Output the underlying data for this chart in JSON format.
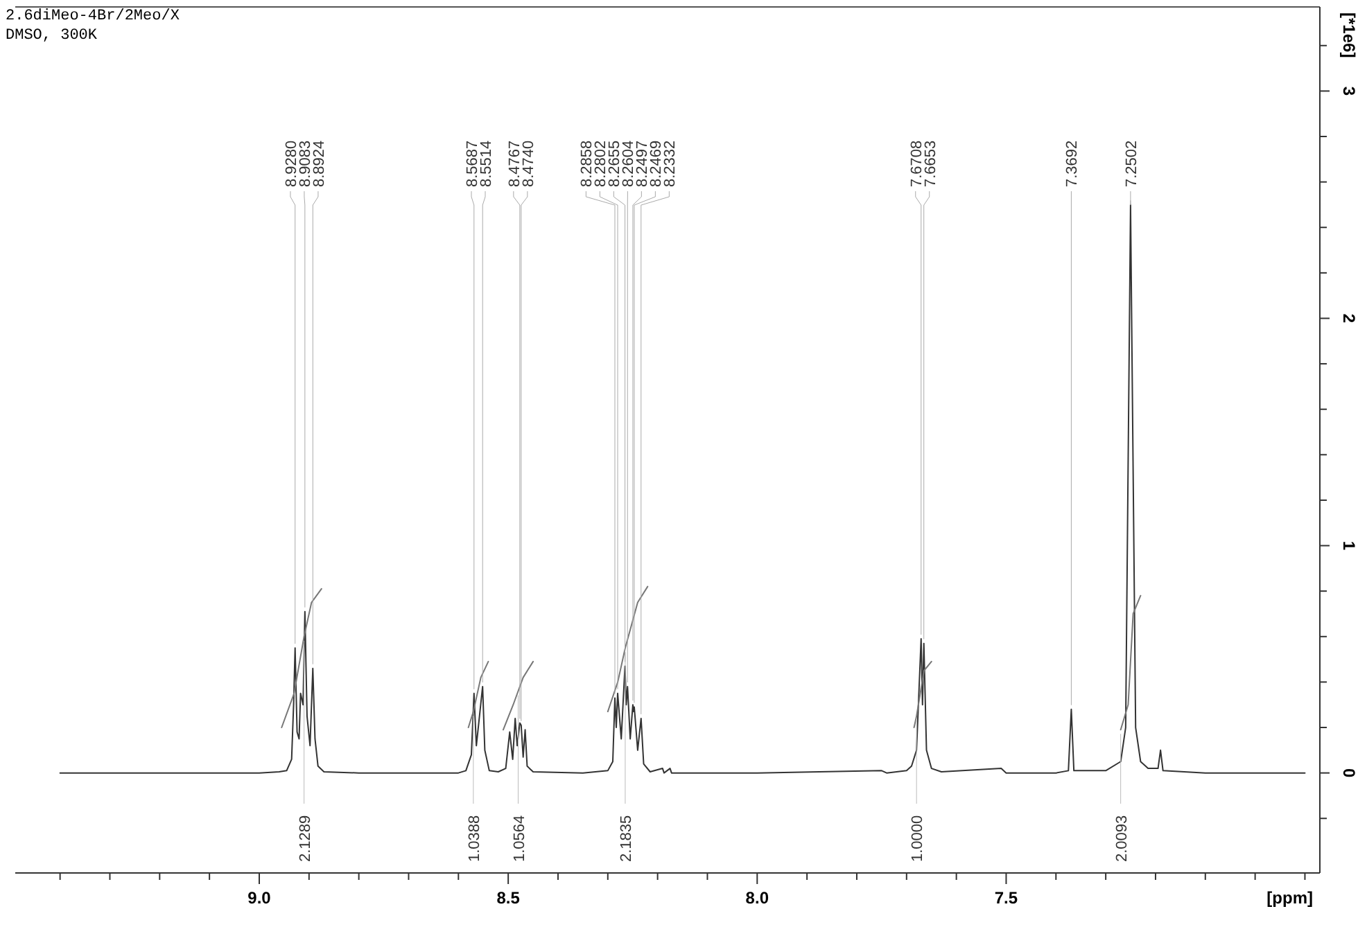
{
  "chart_data": {
    "type": "line",
    "title": "2.6diMeo-4Br/2Meo/X",
    "subtitle": "DMSO, 300K",
    "xlabel": "[ppm]",
    "ylabel": "[*1e6]",
    "xlim": [
      9.49,
      6.87
    ],
    "ylim": [
      -0.44,
      3.37
    ],
    "xticks": [
      {
        "value": 9.4,
        "label": null
      },
      {
        "value": 9.3,
        "label": null
      },
      {
        "value": 9.2,
        "label": null
      },
      {
        "value": 9.1,
        "label": null
      },
      {
        "value": 9.0,
        "label": "9.0"
      },
      {
        "value": 8.9,
        "label": null
      },
      {
        "value": 8.8,
        "label": null
      },
      {
        "value": 8.7,
        "label": null
      },
      {
        "value": 8.6,
        "label": null
      },
      {
        "value": 8.5,
        "label": "8.5"
      },
      {
        "value": 8.4,
        "label": null
      },
      {
        "value": 8.3,
        "label": null
      },
      {
        "value": 8.2,
        "label": null
      },
      {
        "value": 8.1,
        "label": null
      },
      {
        "value": 8.0,
        "label": "8.0"
      },
      {
        "value": 7.9,
        "label": null
      },
      {
        "value": 7.8,
        "label": null
      },
      {
        "value": 7.7,
        "label": null
      },
      {
        "value": 7.6,
        "label": null
      },
      {
        "value": 7.5,
        "label": "7.5"
      },
      {
        "value": 7.4,
        "label": null
      },
      {
        "value": 7.3,
        "label": null
      },
      {
        "value": 7.2,
        "label": null
      },
      {
        "value": 7.1,
        "label": null
      },
      {
        "value": 7.0,
        "label": null
      },
      {
        "value": 6.9,
        "label": null
      }
    ],
    "yticks": [
      {
        "value": -0.2,
        "label": null
      },
      0,
      {
        "value": 0.2,
        "label": null
      },
      {
        "value": 0.4,
        "label": null
      },
      {
        "value": 0.6,
        "label": null
      },
      {
        "value": 0.8,
        "label": null
      },
      1,
      {
        "value": 1.2,
        "label": null
      },
      {
        "value": 1.4,
        "label": null
      },
      {
        "value": 1.6,
        "label": null
      },
      {
        "value": 1.8,
        "label": null
      },
      2,
      {
        "value": 2.2,
        "label": null
      },
      {
        "value": 2.4,
        "label": null
      },
      {
        "value": 2.6,
        "label": null
      },
      {
        "value": 2.8,
        "label": null
      },
      3,
      {
        "value": 3.2,
        "label": null
      }
    ],
    "grid": false,
    "marker": "none",
    "line_style": "solid",
    "series": [
      {
        "color": "#333333",
        "x": [
          9.4,
          9.0,
          8.96,
          8.945,
          8.935,
          8.931,
          8.928,
          8.924,
          8.92,
          8.917,
          8.912,
          8.9083,
          8.904,
          8.898,
          8.8924,
          8.888,
          8.882,
          8.87,
          8.8,
          8.6,
          8.585,
          8.574,
          8.5687,
          8.564,
          8.5514,
          8.547,
          8.538,
          8.52,
          8.505,
          8.497,
          8.491,
          8.486,
          8.482,
          8.4767,
          8.474,
          8.47,
          8.466,
          8.462,
          8.45,
          8.35,
          8.3,
          8.29,
          8.2858,
          8.283,
          8.2802,
          8.273,
          8.2655,
          8.263,
          8.2604,
          8.255,
          8.2497,
          8.248,
          8.2469,
          8.24,
          8.2332,
          8.228,
          8.215,
          8.19,
          8.187,
          8.175,
          8.172,
          8.0,
          7.75,
          7.74,
          7.7,
          7.69,
          7.68,
          7.6708,
          7.668,
          7.6653,
          7.66,
          7.65,
          7.63,
          7.51,
          7.5,
          7.4,
          7.375,
          7.3692,
          7.364,
          7.3,
          7.27,
          7.26,
          7.2502,
          7.24,
          7.23,
          7.215,
          7.195,
          7.19,
          7.185,
          7.1,
          6.9
        ],
        "values": [
          0,
          0,
          0.005,
          0.01,
          0.06,
          0.3,
          0.55,
          0.18,
          0.15,
          0.35,
          0.3,
          0.71,
          0.25,
          0.12,
          0.46,
          0.15,
          0.03,
          0.005,
          0,
          0,
          0.01,
          0.08,
          0.35,
          0.12,
          0.38,
          0.1,
          0.01,
          0.005,
          0.02,
          0.18,
          0.06,
          0.24,
          0.12,
          0.22,
          0.21,
          0.07,
          0.19,
          0.03,
          0.005,
          0,
          0.01,
          0.05,
          0.33,
          0.2,
          0.35,
          0.15,
          0.47,
          0.3,
          0.38,
          0.15,
          0.3,
          0.27,
          0.29,
          0.1,
          0.24,
          0.04,
          0.005,
          0.02,
          0,
          0.02,
          0,
          0,
          0.01,
          0,
          0.01,
          0.03,
          0.1,
          0.59,
          0.3,
          0.57,
          0.1,
          0.02,
          0.005,
          0.02,
          0,
          0,
          0.01,
          0.28,
          0.01,
          0.01,
          0.05,
          0.2,
          2.5,
          0.2,
          0.05,
          0.02,
          0.02,
          0.1,
          0.01,
          0,
          0
        ]
      },
      {
        "color": "#777777",
        "x": [
          8.955,
          8.93,
          8.91,
          8.895,
          8.875
        ],
        "values": [
          0.2,
          0.35,
          0.6,
          0.75,
          0.81
        ]
      },
      {
        "color": "#777777",
        "x": [
          8.58,
          8.57,
          8.555,
          8.54
        ],
        "values": [
          0.2,
          0.27,
          0.42,
          0.49
        ]
      },
      {
        "color": "#777777",
        "x": [
          8.51,
          8.49,
          8.48,
          8.47,
          8.45
        ],
        "values": [
          0.19,
          0.3,
          0.36,
          0.42,
          0.49
        ]
      },
      {
        "color": "#777777",
        "x": [
          8.3,
          8.28,
          8.265,
          8.24,
          8.22
        ],
        "values": [
          0.27,
          0.4,
          0.55,
          0.75,
          0.82
        ]
      },
      {
        "color": "#777777",
        "x": [
          7.685,
          7.68,
          7.665,
          7.65
        ],
        "values": [
          0.2,
          0.25,
          0.45,
          0.49
        ]
      },
      {
        "color": "#777777",
        "x": [
          7.27,
          7.255,
          7.245,
          7.23
        ],
        "values": [
          0.19,
          0.3,
          0.7,
          0.78
        ]
      }
    ],
    "annotations": [
      {
        "text": "8.9280",
        "x": 8.928,
        "y": 0.55
      },
      {
        "text": "8.9083",
        "x": 8.9083,
        "y": 0.71
      },
      {
        "text": "8.8924",
        "x": 8.8924,
        "y": 0.46
      },
      {
        "text": "8.5687",
        "x": 8.5687,
        "y": 0.35
      },
      {
        "text": "8.5514",
        "x": 8.5514,
        "y": 0.38
      },
      {
        "text": "8.4767",
        "x": 8.4767,
        "y": 0.22
      },
      {
        "text": "8.4740",
        "x": 8.474,
        "y": 0.21
      },
      {
        "text": "8.2858",
        "x": 8.2858,
        "y": 0.33
      },
      {
        "text": "8.2802",
        "x": 8.2802,
        "y": 0.35
      },
      {
        "text": "8.2655",
        "x": 8.2655,
        "y": 0.47
      },
      {
        "text": "8.2604",
        "x": 8.2604,
        "y": 0.38
      },
      {
        "text": "8.2497",
        "x": 8.2497,
        "y": 0.3
      },
      {
        "text": "8.2469",
        "x": 8.2469,
        "y": 0.29
      },
      {
        "text": "8.2332",
        "x": 8.2332,
        "y": 0.24
      },
      {
        "text": "7.6708",
        "x": 7.6708,
        "y": 0.59
      },
      {
        "text": "7.6653",
        "x": 7.6653,
        "y": 0.57
      },
      {
        "text": "7.3692",
        "x": 7.3692,
        "y": 0.28
      },
      {
        "text": "7.2502",
        "x": 7.2502,
        "y": 2.5
      },
      {
        "text": "2.1289",
        "x": 8.91,
        "y": 0.6
      },
      {
        "text": "1.0388",
        "x": 8.57,
        "y": 0.27
      },
      {
        "text": "1.0564",
        "x": 8.48,
        "y": 0.36
      },
      {
        "text": "2.1835",
        "x": 8.265,
        "y": 0.55
      },
      {
        "text": "1.0000",
        "x": 7.68,
        "y": 0.25
      },
      {
        "text": "2.0093",
        "x": 7.27,
        "y": 0.19
      }
    ]
  }
}
